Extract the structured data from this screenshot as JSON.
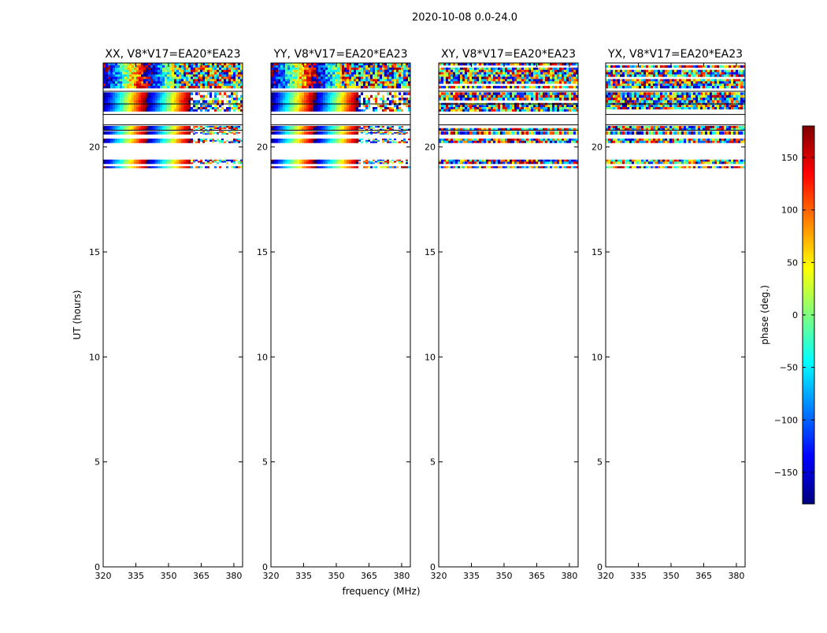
{
  "figure": {
    "suptitle": "2020-10-08 0.0-24.0",
    "xlabel": "frequency (MHz)",
    "ylabel": "UT (hours)"
  },
  "colorbar": {
    "label": "phase (deg.)",
    "range": [
      -180,
      180
    ],
    "ticks": [
      150,
      100,
      50,
      0,
      -50,
      -100,
      -150
    ],
    "tick_labels": [
      "150",
      "100",
      "50",
      "0",
      "−50",
      "−100",
      "−150"
    ],
    "colormap": "jet",
    "colors": [
      "#00007f",
      "#0000ff",
      "#007fff",
      "#00ffff",
      "#7fff7f",
      "#ffff00",
      "#ff7f00",
      "#ff0000",
      "#7f0000"
    ]
  },
  "chart_data": {
    "type": "heatmap",
    "xlim": [
      320,
      384
    ],
    "ylim": [
      0,
      24
    ],
    "xticks": [
      320,
      335,
      350,
      365,
      380
    ],
    "yticks": [
      0,
      5,
      10,
      15,
      20
    ],
    "value_range": [
      -180,
      180
    ],
    "panels": [
      {
        "title": "XX, V8*V17=EA20*EA23",
        "style": "coherent",
        "data_bands": [
          {
            "y0": 22.8,
            "y1": 24.0,
            "kind": "noisy"
          },
          {
            "y0": 22.1,
            "y1": 22.6,
            "kind": "striped"
          },
          {
            "y0": 21.7,
            "y1": 22.1,
            "kind": "striped"
          },
          {
            "y0": 20.8,
            "y1": 21.0,
            "kind": "striped"
          },
          {
            "y0": 20.6,
            "y1": 20.75,
            "kind": "striped"
          },
          {
            "y0": 20.2,
            "y1": 20.4,
            "kind": "striped"
          },
          {
            "y0": 19.2,
            "y1": 19.4,
            "kind": "striped"
          },
          {
            "y0": 19.0,
            "y1": 19.08,
            "kind": "striped"
          }
        ]
      },
      {
        "title": "YY, V8*V17=EA20*EA23",
        "style": "coherent",
        "data_bands": [
          {
            "y0": 22.8,
            "y1": 24.0,
            "kind": "noisy"
          },
          {
            "y0": 22.1,
            "y1": 22.6,
            "kind": "striped"
          },
          {
            "y0": 21.7,
            "y1": 22.1,
            "kind": "striped"
          },
          {
            "y0": 20.8,
            "y1": 21.0,
            "kind": "striped"
          },
          {
            "y0": 20.6,
            "y1": 20.75,
            "kind": "striped"
          },
          {
            "y0": 20.2,
            "y1": 20.4,
            "kind": "striped"
          },
          {
            "y0": 19.2,
            "y1": 19.4,
            "kind": "striped"
          },
          {
            "y0": 19.0,
            "y1": 19.08,
            "kind": "striped"
          }
        ]
      },
      {
        "title": "XY, V8*V17=EA20*EA23",
        "style": "noisy",
        "data_bands": [
          {
            "y0": 22.8,
            "y1": 24.0,
            "kind": "noisy"
          },
          {
            "y0": 22.1,
            "y1": 22.6,
            "kind": "noisy"
          },
          {
            "y0": 21.7,
            "y1": 22.1,
            "kind": "noisy"
          },
          {
            "y0": 20.8,
            "y1": 21.0,
            "kind": "noisy"
          },
          {
            "y0": 20.6,
            "y1": 20.75,
            "kind": "noisy"
          },
          {
            "y0": 20.2,
            "y1": 20.4,
            "kind": "noisy"
          },
          {
            "y0": 19.2,
            "y1": 19.4,
            "kind": "noisy"
          },
          {
            "y0": 19.0,
            "y1": 19.08,
            "kind": "noisy"
          }
        ]
      },
      {
        "title": "YX, V8*V17=EA20*EA23",
        "style": "noisy",
        "data_bands": [
          {
            "y0": 22.8,
            "y1": 24.0,
            "kind": "noisy"
          },
          {
            "y0": 22.1,
            "y1": 22.6,
            "kind": "noisy"
          },
          {
            "y0": 21.7,
            "y1": 22.1,
            "kind": "noisy"
          },
          {
            "y0": 20.8,
            "y1": 21.0,
            "kind": "noisy"
          },
          {
            "y0": 20.6,
            "y1": 20.75,
            "kind": "noisy"
          },
          {
            "y0": 20.2,
            "y1": 20.4,
            "kind": "noisy"
          },
          {
            "y0": 19.2,
            "y1": 19.4,
            "kind": "noisy"
          },
          {
            "y0": 19.0,
            "y1": 19.08,
            "kind": "noisy"
          }
        ]
      }
    ]
  }
}
